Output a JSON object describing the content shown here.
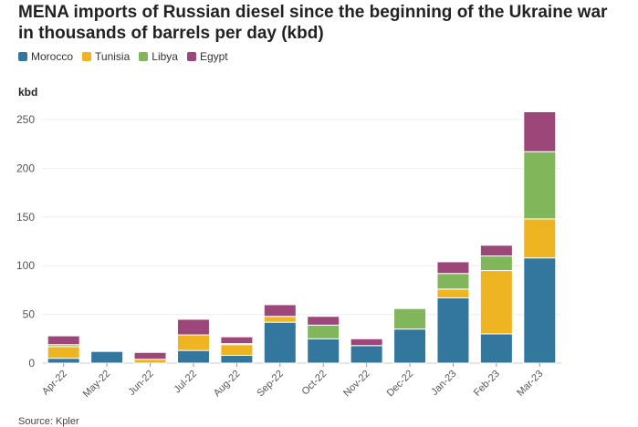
{
  "chart_data": {
    "type": "bar",
    "stacked": true,
    "title": "MENA imports of Russian diesel since the beginning of the Ukraine war in thousands of barrels per day (kbd)",
    "title_lines": [
      "MENA imports of Russian diesel since the beginning of the Ukraine war",
      "in thousands of barrels per day (kbd)"
    ],
    "ylabel": "kbd",
    "xlabel": "",
    "ylim": [
      0,
      260
    ],
    "yticks": [
      0,
      50,
      100,
      150,
      200,
      250
    ],
    "grid": true,
    "legend_position": "top-left",
    "categories": [
      "Apr-22",
      "May-22",
      "Jun-22",
      "Jul-22",
      "Aug-22",
      "Sep-22",
      "Oct-22",
      "Nov-22",
      "Dec-22",
      "Jan-23",
      "Feb-23",
      "Mar-23"
    ],
    "series": [
      {
        "name": "Morocco",
        "color": "#33779f",
        "values": [
          5,
          12,
          0,
          13,
          8,
          42,
          25,
          18,
          35,
          67,
          30,
          108
        ]
      },
      {
        "name": "Tunisia",
        "color": "#eeb422",
        "values": [
          12,
          0,
          4,
          16,
          11,
          6,
          0,
          0,
          0,
          9,
          65,
          40
        ]
      },
      {
        "name": "Libya",
        "color": "#82b65a",
        "values": [
          2,
          0,
          0,
          0,
          1,
          0,
          14,
          0,
          21,
          16,
          15,
          69
        ]
      },
      {
        "name": "Egypt",
        "color": "#9c4679",
        "values": [
          9,
          0,
          7,
          16,
          7,
          12,
          9,
          7,
          0,
          12,
          11,
          41
        ]
      }
    ],
    "source": "Source: Kpler"
  }
}
